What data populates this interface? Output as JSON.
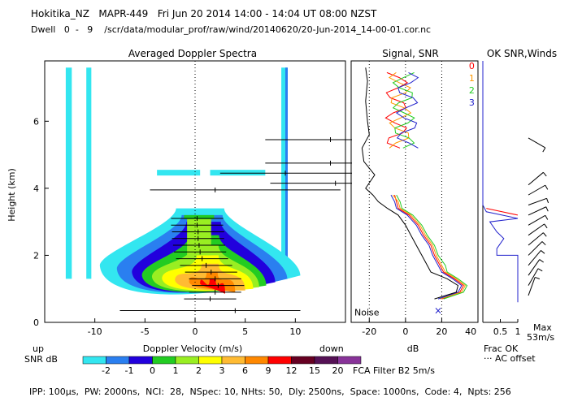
{
  "header": {
    "line1": "Hokitika_NZ   MAPR-449   Fri Jun 20 2014 14:00 - 14:04 UT 08:00 NZST",
    "line2": "Dwell   0  -   9    /scr/data/modular_prof/raw/wind/20140620/20-Jun-2014_14-00-01.cor.nc"
  },
  "footer": {
    "params": "IPP: 100μs,  PW: 2000ns,  NCI:  28,  NSpec: 10, NHts: 50,  Dly: 2500ns,  Space: 1000ns,  Code: 4,  Npts: 256",
    "fca": "FCA Filter B2   5m/s",
    "frac_ok": "Frac OK",
    "ac_offset": "··· AC offset",
    "max_label": "Max",
    "max_value": "53m/s"
  },
  "colorbar": {
    "label_up": "up",
    "label_down": "down",
    "label_snr": "SNR dB",
    "levels": [
      "-2",
      "-1",
      "0",
      "1",
      "2",
      "3",
      "6",
      "9",
      "12",
      "15",
      "20"
    ],
    "colors": [
      "#33e6f0",
      "#2a7ff0",
      "#2200dd",
      "#22cc22",
      "#99ee22",
      "#ffff00",
      "#ffbb33",
      "#ff8800",
      "#ff0000",
      "#660022",
      "#551155",
      "#883399"
    ]
  },
  "chart_data": [
    {
      "type": "heatmap",
      "title": "Averaged Doppler Spectra",
      "xlabel": "Doppler Velocity (m/s)",
      "ylabel": "Height (km)",
      "xlim": [
        -15,
        15
      ],
      "ylim": [
        0,
        7.8
      ],
      "xticks": [
        -10,
        -5,
        0,
        5,
        10
      ],
      "yticks": [
        0,
        2,
        4,
        6
      ],
      "xtick_labels": [
        "-10",
        "-5",
        "0",
        "5",
        "10"
      ],
      "ytick_labels": [
        "0",
        "2",
        "4",
        "6"
      ],
      "mean_velocity_profile": [
        {
          "h": 0.7,
          "v": 1.5
        },
        {
          "h": 0.9,
          "v": 2.0
        },
        {
          "h": 1.1,
          "v": 2.3
        },
        {
          "h": 1.3,
          "v": 2.0
        },
        {
          "h": 1.5,
          "v": 1.6
        },
        {
          "h": 1.7,
          "v": 1.1
        },
        {
          "h": 1.9,
          "v": 0.7
        },
        {
          "h": 2.1,
          "v": 0.5
        },
        {
          "h": 2.3,
          "v": 0.4
        },
        {
          "h": 2.5,
          "v": 0.3
        },
        {
          "h": 2.7,
          "v": 0.3
        },
        {
          "h": 2.9,
          "v": 0.2
        },
        {
          "h": 3.1,
          "v": 0.2
        }
      ],
      "isolated_errorbars": [
        {
          "h": 0.35,
          "v": 4.0,
          "lo": -7.5,
          "hi": 10.5
        },
        {
          "h": 3.95,
          "v": 2.0,
          "lo": -4.5,
          "hi": 14.5
        },
        {
          "h": 4.15,
          "v": 14.0,
          "lo": 7.5,
          "hi": 22.0
        },
        {
          "h": 4.45,
          "v": 9.0,
          "lo": 2.5,
          "hi": 21.0
        },
        {
          "h": 4.75,
          "v": 13.5,
          "lo": 7.0,
          "hi": 22.0
        },
        {
          "h": 5.45,
          "v": 13.5,
          "lo": 7.0,
          "hi": 22.0
        }
      ]
    },
    {
      "type": "line",
      "title": "Signal, SNR",
      "xlabel": "dB",
      "xlim": [
        -30,
        40
      ],
      "ylim": [
        0,
        7.8
      ],
      "xticks": [
        -20,
        0,
        20
      ],
      "xtick_labels": [
        "-20",
        "0",
        "20"
      ],
      "annotation": "Noise",
      "legend": [
        "0",
        "1",
        "2",
        "3"
      ],
      "series": [
        {
          "name": "0",
          "color": "#ff0000",
          "points": [
            {
              "h": 0.7,
              "v": 20
            },
            {
              "h": 0.9,
              "v": 30
            },
            {
              "h": 1.1,
              "v": 32
            },
            {
              "h": 1.3,
              "v": 27
            },
            {
              "h": 1.5,
              "v": 21
            },
            {
              "h": 1.7,
              "v": 19
            },
            {
              "h": 2.0,
              "v": 16
            },
            {
              "h": 2.3,
              "v": 14
            },
            {
              "h": 2.6,
              "v": 10
            },
            {
              "h": 2.9,
              "v": 7
            },
            {
              "h": 3.2,
              "v": 2
            },
            {
              "h": 3.4,
              "v": -4
            },
            {
              "h": 3.6,
              "v": -5
            },
            {
              "h": 3.8,
              "v": -6
            }
          ]
        },
        {
          "name": "1",
          "color": "#ff9900",
          "points": [
            {
              "h": 0.7,
              "v": 19
            },
            {
              "h": 0.9,
              "v": 31
            },
            {
              "h": 1.1,
              "v": 33
            },
            {
              "h": 1.3,
              "v": 28
            },
            {
              "h": 1.5,
              "v": 22
            },
            {
              "h": 1.7,
              "v": 20
            },
            {
              "h": 2.0,
              "v": 17
            },
            {
              "h": 2.3,
              "v": 15
            },
            {
              "h": 2.6,
              "v": 11
            },
            {
              "h": 2.9,
              "v": 8
            },
            {
              "h": 3.2,
              "v": 3
            },
            {
              "h": 3.4,
              "v": -3
            },
            {
              "h": 3.6,
              "v": -4
            },
            {
              "h": 3.8,
              "v": -7
            }
          ]
        },
        {
          "name": "2",
          "color": "#22cc22",
          "points": [
            {
              "h": 0.7,
              "v": 21
            },
            {
              "h": 0.9,
              "v": 32
            },
            {
              "h": 1.1,
              "v": 34
            },
            {
              "h": 1.3,
              "v": 29
            },
            {
              "h": 1.5,
              "v": 23
            },
            {
              "h": 1.7,
              "v": 22
            },
            {
              "h": 2.0,
              "v": 18
            },
            {
              "h": 2.3,
              "v": 16
            },
            {
              "h": 2.6,
              "v": 12
            },
            {
              "h": 2.9,
              "v": 9
            },
            {
              "h": 3.2,
              "v": 4
            },
            {
              "h": 3.4,
              "v": -2
            },
            {
              "h": 3.6,
              "v": -3
            },
            {
              "h": 3.8,
              "v": -5
            }
          ]
        },
        {
          "name": "3",
          "color": "#2222cc",
          "points": [
            {
              "h": 0.7,
              "v": 18
            },
            {
              "h": 0.9,
              "v": 29
            },
            {
              "h": 1.1,
              "v": 31
            },
            {
              "h": 1.3,
              "v": 26
            },
            {
              "h": 1.5,
              "v": 20
            },
            {
              "h": 1.7,
              "v": 18
            },
            {
              "h": 2.0,
              "v": 15
            },
            {
              "h": 2.3,
              "v": 13
            },
            {
              "h": 2.6,
              "v": 9
            },
            {
              "h": 2.9,
              "v": 6
            },
            {
              "h": 3.2,
              "v": 1
            },
            {
              "h": 3.4,
              "v": -5
            },
            {
              "h": 3.6,
              "v": -6
            },
            {
              "h": 3.8,
              "v": -8
            }
          ]
        },
        {
          "name": "signal",
          "color": "#000000",
          "points": [
            {
              "h": 0.7,
              "v": 16
            },
            {
              "h": 0.9,
              "v": 28
            },
            {
              "h": 1.1,
              "v": 29
            },
            {
              "h": 1.3,
              "v": 23
            },
            {
              "h": 1.5,
              "v": 14
            },
            {
              "h": 1.7,
              "v": 12
            },
            {
              "h": 2.0,
              "v": 9
            },
            {
              "h": 2.3,
              "v": 6
            },
            {
              "h": 2.6,
              "v": 3
            },
            {
              "h": 2.9,
              "v": 0
            },
            {
              "h": 3.2,
              "v": -4
            },
            {
              "h": 3.4,
              "v": -10
            },
            {
              "h": 3.6,
              "v": -15
            },
            {
              "h": 3.8,
              "v": -18
            },
            {
              "h": 4.0,
              "v": -22
            },
            {
              "h": 4.4,
              "v": -17
            },
            {
              "h": 4.8,
              "v": -23
            },
            {
              "h": 5.2,
              "v": -24
            },
            {
              "h": 5.6,
              "v": -20
            },
            {
              "h": 6.0,
              "v": -21
            },
            {
              "h": 6.6,
              "v": -22
            },
            {
              "h": 7.2,
              "v": -21
            },
            {
              "h": 7.6,
              "v": -22
            }
          ]
        }
      ]
    },
    {
      "type": "line",
      "title": "OK SNR,Winds",
      "xlabel": "Frac OK",
      "xlim": [
        0,
        1
      ],
      "ylim": [
        0,
        7.8
      ],
      "xticks": [
        0.5,
        1
      ],
      "xtick_labels": [
        "0.5",
        "1"
      ],
      "series": [
        {
          "name": "frac_ok",
          "color": "#2222cc",
          "points": [
            {
              "h": 0.6,
              "v": 1.0
            },
            {
              "h": 2.0,
              "v": 1.0
            },
            {
              "h": 2.0,
              "v": 0.4
            },
            {
              "h": 2.2,
              "v": 0.4
            },
            {
              "h": 2.5,
              "v": 0.6
            },
            {
              "h": 2.7,
              "v": 0.4
            },
            {
              "h": 3.0,
              "v": 0.2
            },
            {
              "h": 3.1,
              "v": 1.0
            },
            {
              "h": 3.3,
              "v": 0.1
            },
            {
              "h": 3.5,
              "v": 0.0
            },
            {
              "h": 7.8,
              "v": 0.0
            }
          ]
        }
      ],
      "wind_barbs": [
        {
          "h": 0.8,
          "dir": 200
        },
        {
          "h": 1.1,
          "dir": 210
        },
        {
          "h": 1.4,
          "dir": 215
        },
        {
          "h": 1.7,
          "dir": 220
        },
        {
          "h": 2.0,
          "dir": 225
        },
        {
          "h": 2.3,
          "dir": 230
        },
        {
          "h": 2.6,
          "dir": 235
        },
        {
          "h": 2.9,
          "dir": 240
        },
        {
          "h": 3.2,
          "dir": 245
        },
        {
          "h": 3.5,
          "dir": 250
        },
        {
          "h": 3.8,
          "dir": 240
        },
        {
          "h": 4.1,
          "dir": 230
        },
        {
          "h": 5.5,
          "dir": 300
        }
      ]
    }
  ]
}
